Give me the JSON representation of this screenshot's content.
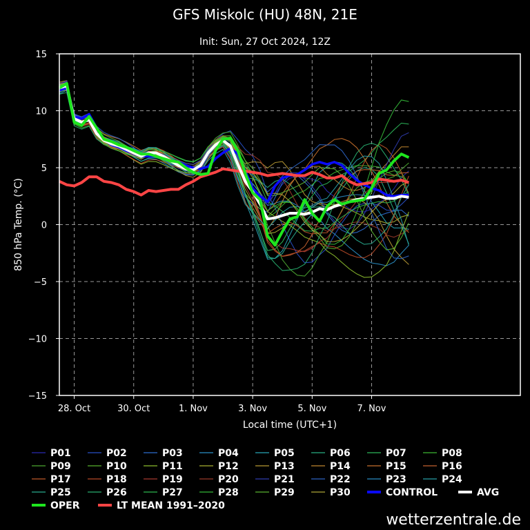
{
  "chart_data": {
    "type": "line",
    "title": "GFS Miskolc (HU) 48N, 21E",
    "subtitle": "Init: Sun, 27 Oct 2024, 12Z",
    "xlabel": "Local time (UTC+1)",
    "ylabel": "850 hPa Temp. (°C)",
    "xlim": [
      0,
      15.5
    ],
    "ylim": [
      -15,
      15
    ],
    "x_ticks": [
      {
        "x": 0.5,
        "label": "28. Oct"
      },
      {
        "x": 2.5,
        "label": "30. Oct"
      },
      {
        "x": 4.5,
        "label": "1. Nov"
      },
      {
        "x": 6.5,
        "label": "3. Nov"
      },
      {
        "x": 8.5,
        "label": "5. Nov"
      },
      {
        "x": 10.5,
        "label": "7. Nov"
      }
    ],
    "y_ticks": [
      -15,
      -10,
      -5,
      0,
      5,
      10,
      15
    ],
    "grid": true,
    "x": [
      0.0,
      0.25,
      0.5,
      0.75,
      1.0,
      1.25,
      1.5,
      1.75,
      2.0,
      2.25,
      2.5,
      2.75,
      3.0,
      3.25,
      3.5,
      3.75,
      4.0,
      4.25,
      4.5,
      4.75,
      5.0,
      5.25,
      5.5,
      5.75,
      6.0,
      6.25,
      6.5,
      6.75,
      7.0,
      7.25,
      7.5,
      7.75,
      8.0,
      8.25,
      8.5,
      8.75,
      9.0,
      9.25,
      9.5,
      9.75,
      10.0,
      10.25,
      10.5,
      10.75,
      11.0,
      11.25,
      11.5,
      11.75
    ],
    "series": [
      {
        "name": "OPER",
        "color": "#1ee61e",
        "values": [
          12.0,
          12.4,
          9.0,
          8.7,
          9.5,
          8.5,
          7.5,
          7.3,
          7.0,
          6.8,
          6.5,
          6.2,
          6.2,
          6.0,
          5.8,
          5.6,
          5.5,
          5.0,
          4.6,
          4.4,
          4.5,
          6.5,
          7.5,
          7.6,
          6.5,
          4.5,
          2.8,
          2.2,
          -1.0,
          -1.8,
          -0.6,
          0.5,
          0.7,
          2.2,
          1.0,
          0.3,
          1.6,
          2.2,
          1.8,
          2.0,
          2.1,
          2.2,
          3.2,
          4.5,
          4.8,
          5.6,
          6.2,
          5.9
        ]
      },
      {
        "name": "CONTROL",
        "color": "#0a0aff",
        "values": [
          11.8,
          12.0,
          9.5,
          9.3,
          9.7,
          8.5,
          7.5,
          7.0,
          6.8,
          6.5,
          6.3,
          6.0,
          6.0,
          6.0,
          5.8,
          5.6,
          5.5,
          5.2,
          5.0,
          4.9,
          5.1,
          5.8,
          6.3,
          6.7,
          6.2,
          4.7,
          3.2,
          2.5,
          2.0,
          3.4,
          4.1,
          4.3,
          4.4,
          4.8,
          5.3,
          5.5,
          5.3,
          5.5,
          5.2,
          4.5,
          3.9,
          3.5,
          3.2,
          3.0,
          2.6,
          2.5,
          2.6,
          2.6
        ]
      },
      {
        "name": "AVG",
        "color": "#ffffff",
        "values": [
          12.0,
          12.2,
          9.3,
          9.0,
          9.2,
          8.0,
          7.4,
          7.1,
          6.9,
          6.6,
          6.3,
          6.0,
          6.3,
          6.3,
          6.0,
          5.6,
          5.2,
          4.9,
          4.8,
          5.2,
          6.3,
          7.0,
          7.4,
          6.9,
          5.3,
          3.8,
          2.9,
          1.8,
          0.5,
          0.6,
          0.8,
          1.0,
          1.0,
          0.9,
          1.1,
          1.4,
          1.3,
          1.6,
          1.8,
          2.0,
          2.2,
          2.3,
          2.4,
          2.5,
          2.3,
          2.3,
          2.5,
          2.4
        ]
      },
      {
        "name": "LT MEAN 1991–2020",
        "color": "#ff4545",
        "values": [
          3.8,
          3.5,
          3.4,
          3.7,
          4.2,
          4.2,
          3.8,
          3.7,
          3.5,
          3.1,
          2.9,
          2.6,
          3.0,
          2.9,
          3.0,
          3.1,
          3.1,
          3.5,
          3.8,
          4.2,
          4.4,
          4.6,
          4.9,
          4.8,
          4.7,
          4.7,
          4.6,
          4.5,
          4.3,
          4.4,
          4.5,
          4.4,
          4.3,
          4.3,
          4.6,
          4.4,
          4.1,
          4.1,
          4.3,
          3.8,
          3.5,
          3.6,
          3.7,
          4.0,
          3.9,
          3.8,
          3.9,
          3.7
        ]
      }
    ],
    "legend": [
      {
        "label": "P01",
        "color": "#2a2ab4",
        "weight": "thin"
      },
      {
        "label": "P02",
        "color": "#2850c8",
        "weight": "thin"
      },
      {
        "label": "P03",
        "color": "#2c6ed0",
        "weight": "thin"
      },
      {
        "label": "P04",
        "color": "#2a90c8",
        "weight": "thin"
      },
      {
        "label": "P05",
        "color": "#28a6b8",
        "weight": "thin"
      },
      {
        "label": "P06",
        "color": "#28b084",
        "weight": "thin"
      },
      {
        "label": "P07",
        "color": "#2eb85a",
        "weight": "thin"
      },
      {
        "label": "P08",
        "color": "#3cb832",
        "weight": "thin"
      },
      {
        "label": "P09",
        "color": "#4ca832",
        "weight": "thin"
      },
      {
        "label": "P10",
        "color": "#58b42e",
        "weight": "thin"
      },
      {
        "label": "P11",
        "color": "#8cbc2e",
        "weight": "thin"
      },
      {
        "label": "P12",
        "color": "#a8b032",
        "weight": "thin"
      },
      {
        "label": "P13",
        "color": "#b89a34",
        "weight": "thin"
      },
      {
        "label": "P14",
        "color": "#c08630",
        "weight": "thin"
      },
      {
        "label": "P15",
        "color": "#c8702c",
        "weight": "thin"
      },
      {
        "label": "P16",
        "color": "#c46230",
        "weight": "thin"
      },
      {
        "label": "P17",
        "color": "#c05a2a",
        "weight": "thin"
      },
      {
        "label": "P18",
        "color": "#b84a28",
        "weight": "thin"
      },
      {
        "label": "P19",
        "color": "#a83a30",
        "weight": "thin"
      },
      {
        "label": "P20",
        "color": "#9a3a2a",
        "weight": "thin"
      },
      {
        "label": "P21",
        "color": "#303cb0",
        "weight": "thin"
      },
      {
        "label": "P22",
        "color": "#2c64c4",
        "weight": "thin"
      },
      {
        "label": "P23",
        "color": "#2a8cc4",
        "weight": "thin"
      },
      {
        "label": "P24",
        "color": "#28a0a8",
        "weight": "thin"
      },
      {
        "label": "P25",
        "color": "#28ac90",
        "weight": "thin"
      },
      {
        "label": "P26",
        "color": "#28b070",
        "weight": "thin"
      },
      {
        "label": "P27",
        "color": "#2eb850",
        "weight": "thin"
      },
      {
        "label": "P28",
        "color": "#34b838",
        "weight": "thin"
      },
      {
        "label": "P29",
        "color": "#5ab432",
        "weight": "thin"
      },
      {
        "label": "P30",
        "color": "#b0a838",
        "weight": "thin"
      },
      {
        "label": "CONTROL",
        "color": "#0a0aff",
        "weight": "thick"
      },
      {
        "label": "AVG",
        "color": "#ffffff",
        "weight": "thick"
      },
      {
        "label": "OPER",
        "color": "#1ee61e",
        "weight": "thick"
      },
      {
        "label": "LT MEAN 1991–2020",
        "color": "#ff4545",
        "weight": "thick"
      }
    ],
    "legend_position": "bottom"
  },
  "footer": {
    "credit": "wetterzentrale.de"
  }
}
